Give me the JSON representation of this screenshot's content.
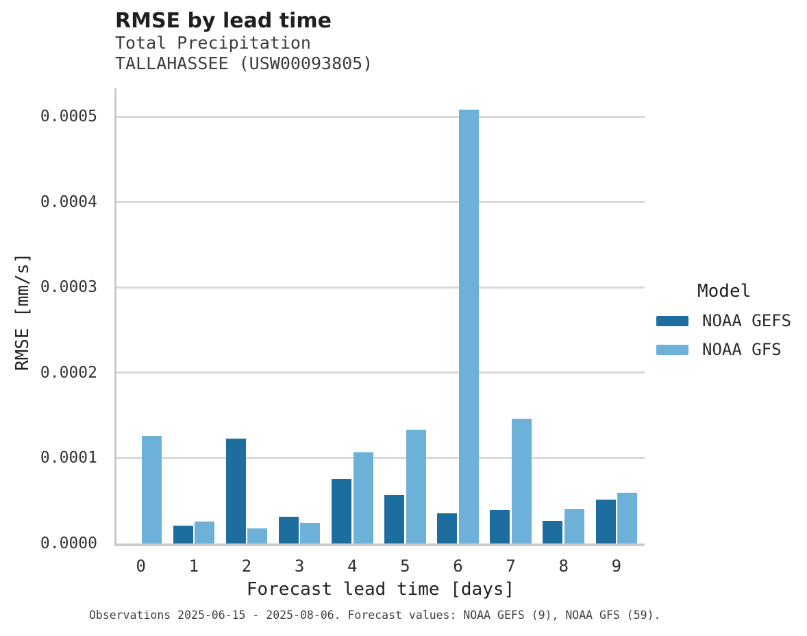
{
  "header": {
    "title": "RMSE by lead time",
    "subtitle_line1": "Total Precipitation",
    "subtitle_line2": "TALLAHASSEE (USW00093805)"
  },
  "chart_data": {
    "type": "bar",
    "title": "RMSE by lead time",
    "subtitle": "Total Precipitation TALLAHASSEE (USW00093805)",
    "xlabel": "Forecast lead time [days]",
    "ylabel": "RMSE [mm/s]",
    "categories": [
      0,
      1,
      2,
      3,
      4,
      5,
      6,
      7,
      8,
      9
    ],
    "series": [
      {
        "name": "NOAA GEFS",
        "color": "#1d6d9e",
        "values": [
          null,
          2.1e-05,
          0.000123,
          3.1e-05,
          7.55e-05,
          5.7e-05,
          3.5e-05,
          3.92e-05,
          2.63e-05,
          5.1e-05
        ]
      },
      {
        "name": "NOAA GFS",
        "color": "#6db1d8",
        "values": [
          0.000126,
          2.6e-05,
          1.75e-05,
          2.4e-05,
          0.000107,
          0.000133,
          0.000508,
          0.000146,
          4.02e-05,
          5.95e-05
        ]
      }
    ],
    "ylim": [
      0,
      0.000533
    ],
    "yticks": [
      0,
      0.0001,
      0.0002,
      0.0003,
      0.0004,
      0.0005
    ],
    "ytick_labels": [
      "0.0000",
      "0.0001",
      "0.0002",
      "0.0003",
      "0.0004",
      "0.0005"
    ],
    "grid": "horizontal",
    "legend_position": "right"
  },
  "legend": {
    "title": "Model",
    "entries": [
      {
        "label": "NOAA GEFS",
        "color": "#1d6d9e"
      },
      {
        "label": "NOAA GFS",
        "color": "#6db1d8"
      }
    ]
  },
  "footer": {
    "note": "Observations 2025-06-15 - 2025-08-06. Forecast values: NOAA GEFS (9), NOAA GFS (59)."
  }
}
